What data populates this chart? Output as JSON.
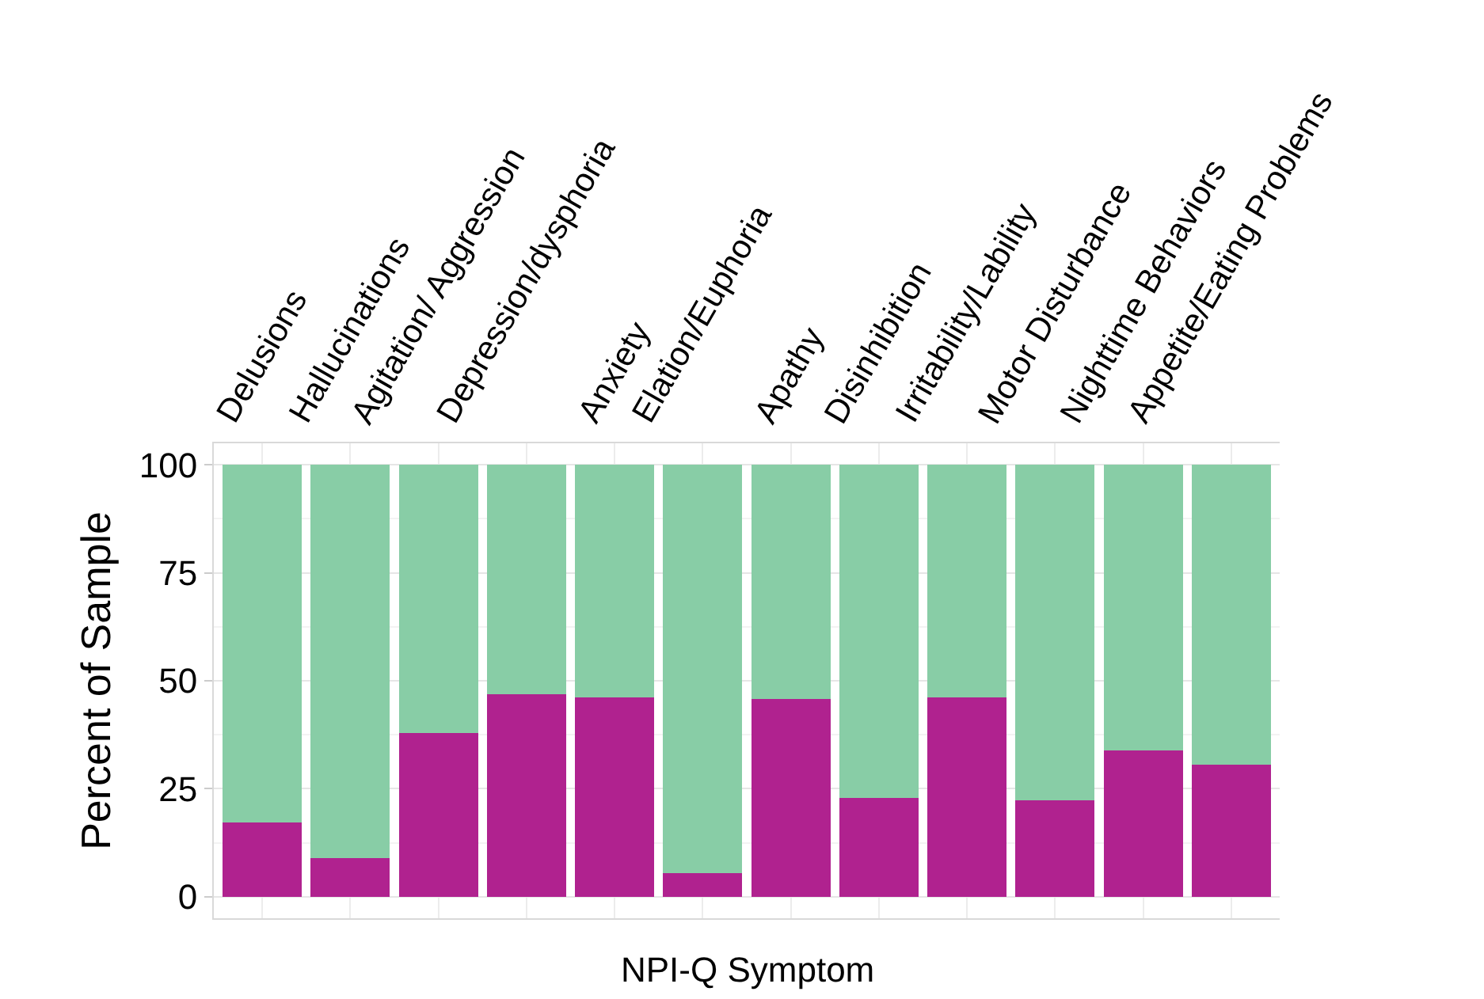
{
  "chart_data": {
    "type": "bar",
    "stacked": true,
    "xlabel": "NPI-Q Symptom",
    "ylabel": "Percent of Sample",
    "categories": [
      "Delusions",
      "Hallucinations",
      "Agitation/ Aggression",
      "Depression/dysphoria",
      "Anxiety",
      "Elation/Euphoria",
      "Apathy",
      "Disinhibition",
      "Irritability/Lability",
      "Motor Disturbance",
      "Nighttime Behaviors",
      "Appetite/Eating Problems"
    ],
    "series": [
      {
        "color": "#b0228f",
        "values": [
          17.1,
          8.9,
          37.9,
          46.9,
          46.1,
          5.4,
          45.8,
          22.8,
          46.1,
          22.3,
          33.9,
          30.6
        ]
      },
      {
        "color": "#88cda6",
        "values": [
          82.9,
          91.1,
          62.1,
          53.1,
          53.9,
          94.6,
          54.2,
          77.2,
          53.9,
          77.7,
          66.1,
          69.4
        ]
      }
    ],
    "ylim": [
      -5,
      105
    ],
    "yticks": [
      0,
      25,
      50,
      75,
      100
    ],
    "grid": true
  }
}
